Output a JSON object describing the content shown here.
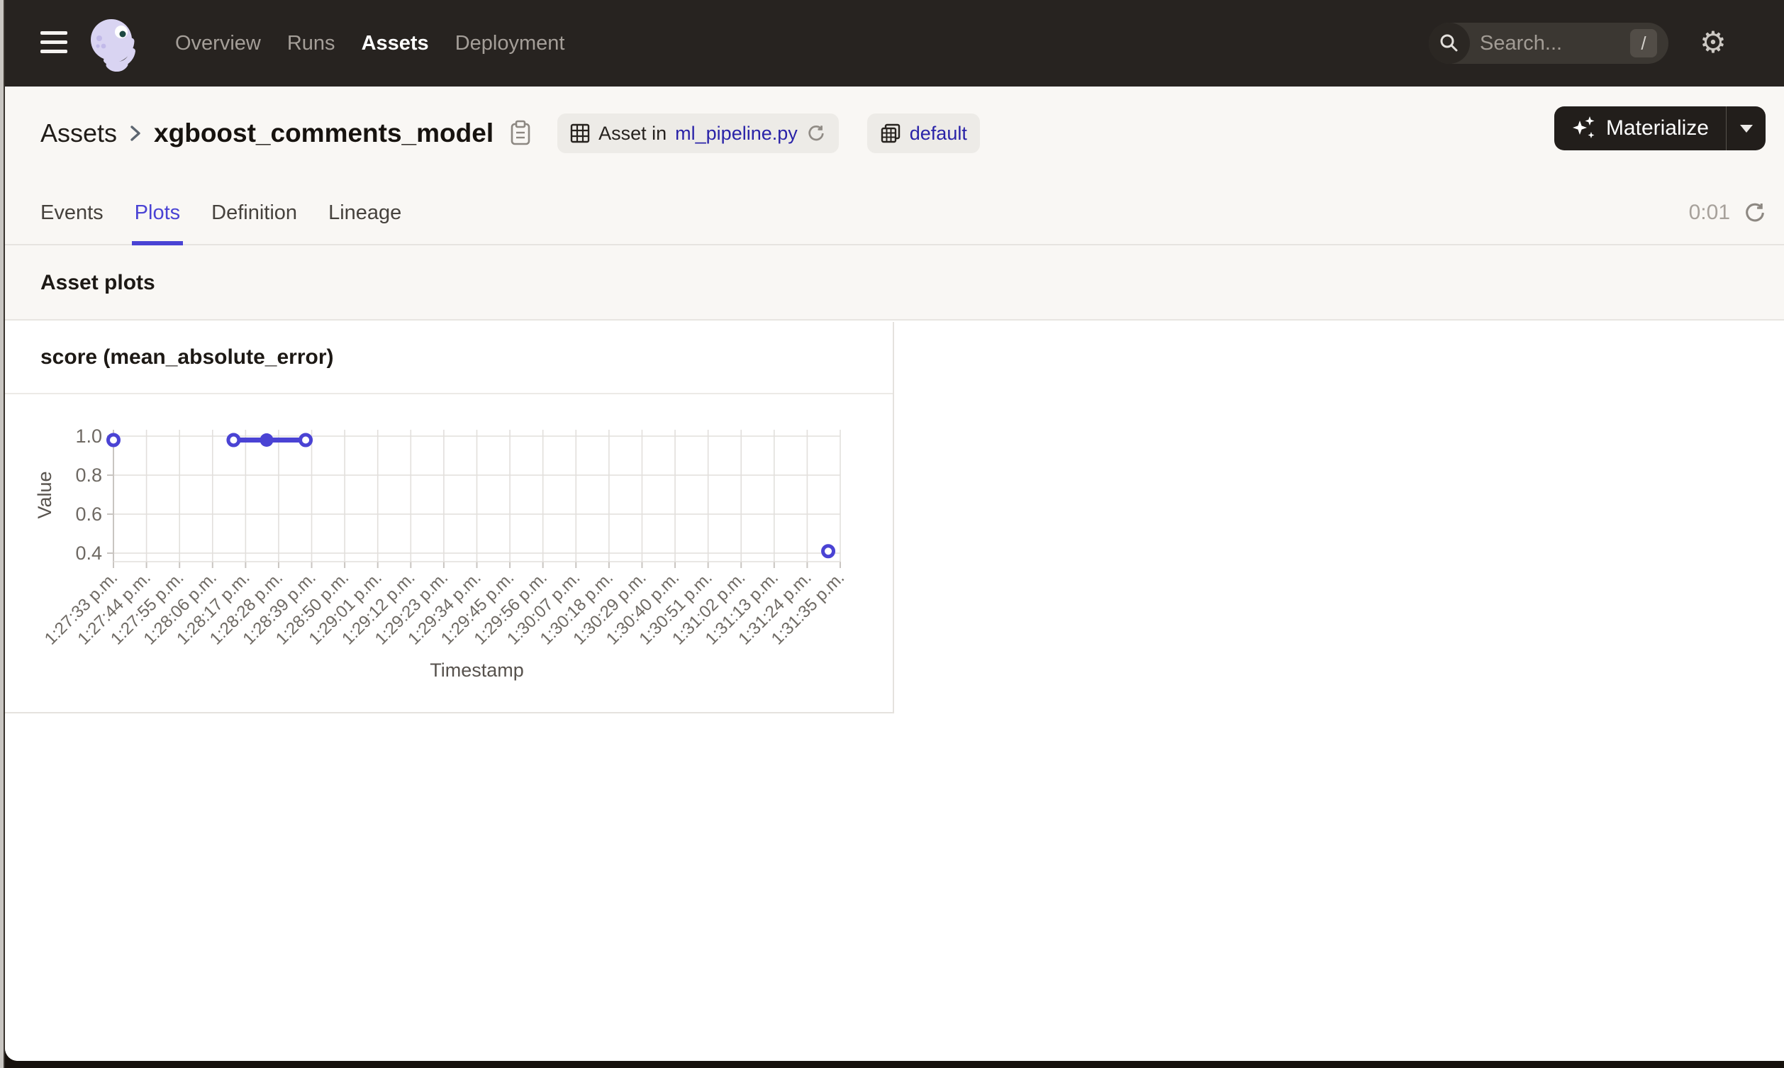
{
  "nav": {
    "items": [
      {
        "label": "Overview"
      },
      {
        "label": "Runs"
      },
      {
        "label": "Assets"
      },
      {
        "label": "Deployment"
      }
    ],
    "search": {
      "placeholder": "Search...",
      "shortcut_key": "/"
    }
  },
  "icons": {
    "settings_gear": "⚙"
  },
  "header": {
    "breadcrumb_root": "Assets",
    "title": "xgboost_comments_model",
    "asset_in_label": "Asset in",
    "asset_in_link": "ml_pipeline.py",
    "group_badge_label": "default",
    "materialize_label": "Materialize"
  },
  "tabs": {
    "items": [
      {
        "label": "Events"
      },
      {
        "label": "Plots"
      },
      {
        "label": "Definition"
      },
      {
        "label": "Lineage"
      }
    ],
    "refresh_timer": "0:01"
  },
  "section": {
    "heading": "Asset plots"
  },
  "plot_card": {
    "title": "score (mean_absolute_error)"
  },
  "colors": {
    "accent": "#4a43d4",
    "link": "#2a23a8",
    "nav_background": "#272320",
    "chart_line": "#4a43d4",
    "grid_line": "#e2dfdc",
    "axis_line": "#c9c5c1",
    "tick_text": "#6e6963",
    "axis_title_text": "#57524d"
  },
  "chart_data": {
    "type": "line",
    "title": "score (mean_absolute_error)",
    "xlabel": "Timestamp",
    "ylabel": "Value",
    "y_ticks": [
      0.4,
      0.6,
      0.8,
      1.0
    ],
    "ylim": [
      0.36,
      1.07
    ],
    "x_tick_labels": [
      "1:27:33 p.m.",
      "1:27:44 p.m.",
      "1:27:55 p.m.",
      "1:28:06 p.m.",
      "1:28:17 p.m.",
      "1:28:28 p.m.",
      "1:28:39 p.m.",
      "1:28:50 p.m.",
      "1:29:01 p.m.",
      "1:29:12 p.m.",
      "1:29:23 p.m.",
      "1:29:34 p.m.",
      "1:29:45 p.m.",
      "1:29:56 p.m.",
      "1:30:07 p.m.",
      "1:30:18 p.m.",
      "1:30:29 p.m.",
      "1:30:40 p.m.",
      "1:30:51 p.m.",
      "1:31:02 p.m.",
      "1:31:13 p.m.",
      "1:31:24 p.m.",
      "1:31:35 p.m."
    ],
    "x_tick_interval_seconds": 11,
    "grid": true,
    "legend": false,
    "points": [
      {
        "time": "1:27:33 p.m.",
        "sec": 0,
        "value": 0.98,
        "marker": "open"
      },
      {
        "time": "1:28:13 p.m.",
        "sec": 40,
        "value": 0.98,
        "marker": "open"
      },
      {
        "time": "1:28:24 p.m.",
        "sec": 51,
        "value": 0.98,
        "marker": "filled"
      },
      {
        "time": "1:28:37 p.m.",
        "sec": 64,
        "value": 0.98,
        "marker": "open"
      },
      {
        "time": "1:31:31 p.m.",
        "sec": 238,
        "value": 0.41,
        "marker": "open"
      }
    ],
    "connected_point_indices": [
      1,
      2,
      3
    ]
  }
}
